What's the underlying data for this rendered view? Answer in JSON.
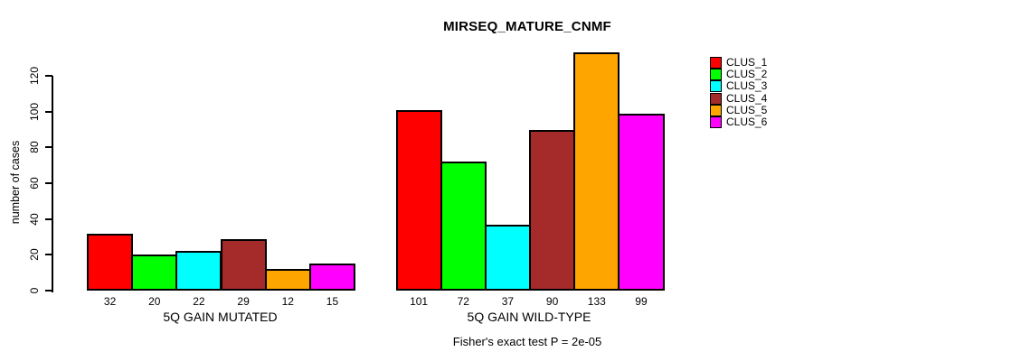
{
  "chart_data": {
    "type": "bar",
    "title": "MIRSEQ_MATURE_CNMF",
    "ylabel": "number of cases",
    "xlabel": "",
    "ylim": [
      0,
      133
    ],
    "yticks": [
      0,
      20,
      40,
      60,
      80,
      100,
      120
    ],
    "grid": false,
    "legend_position": "right",
    "categories": [
      "5Q GAIN MUTATED",
      "5Q GAIN WILD-TYPE"
    ],
    "series": [
      {
        "name": "CLUS_1",
        "color": "#FF0000",
        "values": [
          32,
          101
        ]
      },
      {
        "name": "CLUS_2",
        "color": "#00FF00",
        "values": [
          20,
          72
        ]
      },
      {
        "name": "CLUS_3",
        "color": "#00FFFF",
        "values": [
          22,
          37
        ]
      },
      {
        "name": "CLUS_4",
        "color": "#A52A2A",
        "values": [
          29,
          90
        ]
      },
      {
        "name": "CLUS_5",
        "color": "#FFA500",
        "values": [
          12,
          133
        ]
      },
      {
        "name": "CLUS_6",
        "color": "#FF00FF",
        "values": [
          15,
          99
        ]
      }
    ],
    "bar_value_labels": true,
    "annotation": "Fisher's exact test P = 2e-05",
    "axis_color": "#000000",
    "bar_border_color": "#000000"
  }
}
